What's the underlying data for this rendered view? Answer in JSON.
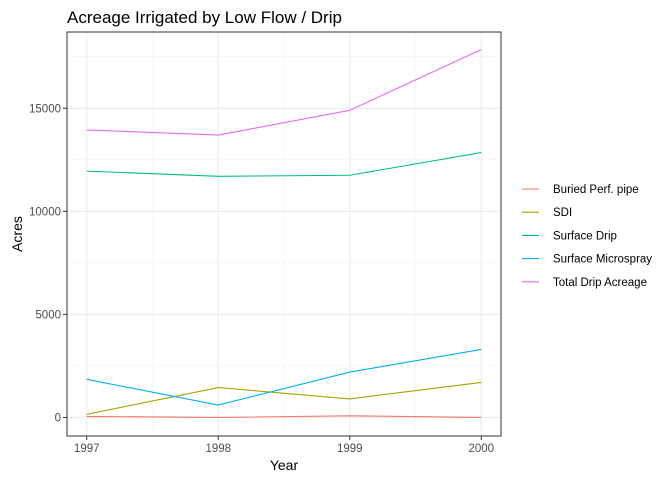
{
  "chart_data": {
    "type": "line",
    "title": "Acreage Irrigated by Low Flow / Drip",
    "xlabel": "Year",
    "ylabel": "Acres",
    "x": [
      1997,
      1998,
      1999,
      2000
    ],
    "xticks": [
      "1997",
      "1998",
      "1999",
      "2000"
    ],
    "xlim": [
      1996.85,
      2000.15
    ],
    "yticks": [
      0,
      5000,
      10000,
      15000
    ],
    "yticklabels": [
      "0",
      "5000",
      "10000",
      "15000"
    ],
    "ylim": [
      -900,
      18700
    ],
    "grid": true,
    "legend_position": "right",
    "series": [
      {
        "name": "Buried Perf. pipe",
        "color": "#F8766D",
        "values": [
          50,
          0,
          80,
          0
        ]
      },
      {
        "name": "SDI",
        "color": "#A3A500",
        "values": [
          150,
          1450,
          900,
          1700
        ]
      },
      {
        "name": "Surface Drip",
        "color": "#00BF7D",
        "values": [
          11950,
          11700,
          11750,
          12850
        ]
      },
      {
        "name": "Surface Microspray",
        "color": "#00B0F6",
        "values": [
          1850,
          600,
          2200,
          3300
        ]
      },
      {
        "name": "Total Drip Acreage",
        "color": "#E76BF3",
        "values": [
          13950,
          13700,
          14900,
          17850
        ]
      }
    ]
  }
}
